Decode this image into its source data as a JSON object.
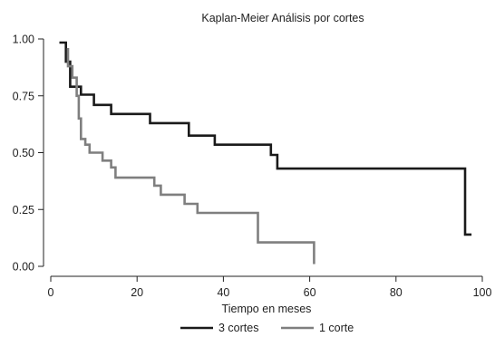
{
  "chart_data": {
    "type": "line",
    "title": "Kaplan-Meier Análisis por cortes",
    "xlabel": "Tiempo en meses",
    "ylabel": "",
    "xlim": [
      0,
      100
    ],
    "ylim": [
      0,
      1
    ],
    "xticks": [
      0,
      20,
      40,
      60,
      80,
      100
    ],
    "xtick_labels": [
      "0",
      "20",
      "40",
      "60",
      "80",
      "100"
    ],
    "yticks": [
      0,
      0.25,
      0.5,
      0.75,
      1
    ],
    "ytick_labels": [
      "0.00",
      "0.25",
      "0.50",
      "0.75",
      "1.00"
    ],
    "grid": false,
    "legend_position": "bottom",
    "series": [
      {
        "name": "3 cortes",
        "color": "#1a1a1a",
        "step_points": [
          [
            2,
            0.984
          ],
          [
            3.5,
            0.984
          ],
          [
            3.5,
            0.9
          ],
          [
            4.5,
            0.9
          ],
          [
            4.5,
            0.79
          ],
          [
            7,
            0.79
          ],
          [
            7,
            0.755
          ],
          [
            10,
            0.755
          ],
          [
            10,
            0.71
          ],
          [
            14,
            0.71
          ],
          [
            14,
            0.67
          ],
          [
            23,
            0.67
          ],
          [
            23,
            0.63
          ],
          [
            32,
            0.63
          ],
          [
            32,
            0.575
          ],
          [
            38,
            0.575
          ],
          [
            38,
            0.535
          ],
          [
            51,
            0.535
          ],
          [
            51,
            0.49
          ],
          [
            52.5,
            0.49
          ],
          [
            52.5,
            0.43
          ],
          [
            96,
            0.43
          ],
          [
            96,
            0.14
          ],
          [
            97.5,
            0.14
          ]
        ]
      },
      {
        "name": "1 corte",
        "color": "#7f7f7f",
        "step_points": [
          [
            4,
            0.96
          ],
          [
            4,
            0.88
          ],
          [
            5,
            0.88
          ],
          [
            5,
            0.83
          ],
          [
            6,
            0.83
          ],
          [
            6,
            0.75
          ],
          [
            6.5,
            0.75
          ],
          [
            6.5,
            0.65
          ],
          [
            7,
            0.65
          ],
          [
            7,
            0.56
          ],
          [
            8,
            0.56
          ],
          [
            8,
            0.535
          ],
          [
            9,
            0.535
          ],
          [
            9,
            0.5
          ],
          [
            12,
            0.5
          ],
          [
            12,
            0.465
          ],
          [
            14,
            0.465
          ],
          [
            14,
            0.435
          ],
          [
            15,
            0.435
          ],
          [
            15,
            0.39
          ],
          [
            24,
            0.39
          ],
          [
            24,
            0.355
          ],
          [
            25.5,
            0.355
          ],
          [
            25.5,
            0.315
          ],
          [
            31,
            0.315
          ],
          [
            31,
            0.275
          ],
          [
            34,
            0.275
          ],
          [
            34,
            0.235
          ],
          [
            48,
            0.235
          ],
          [
            48,
            0.105
          ],
          [
            61,
            0.105
          ],
          [
            61,
            0.01
          ]
        ]
      }
    ]
  }
}
